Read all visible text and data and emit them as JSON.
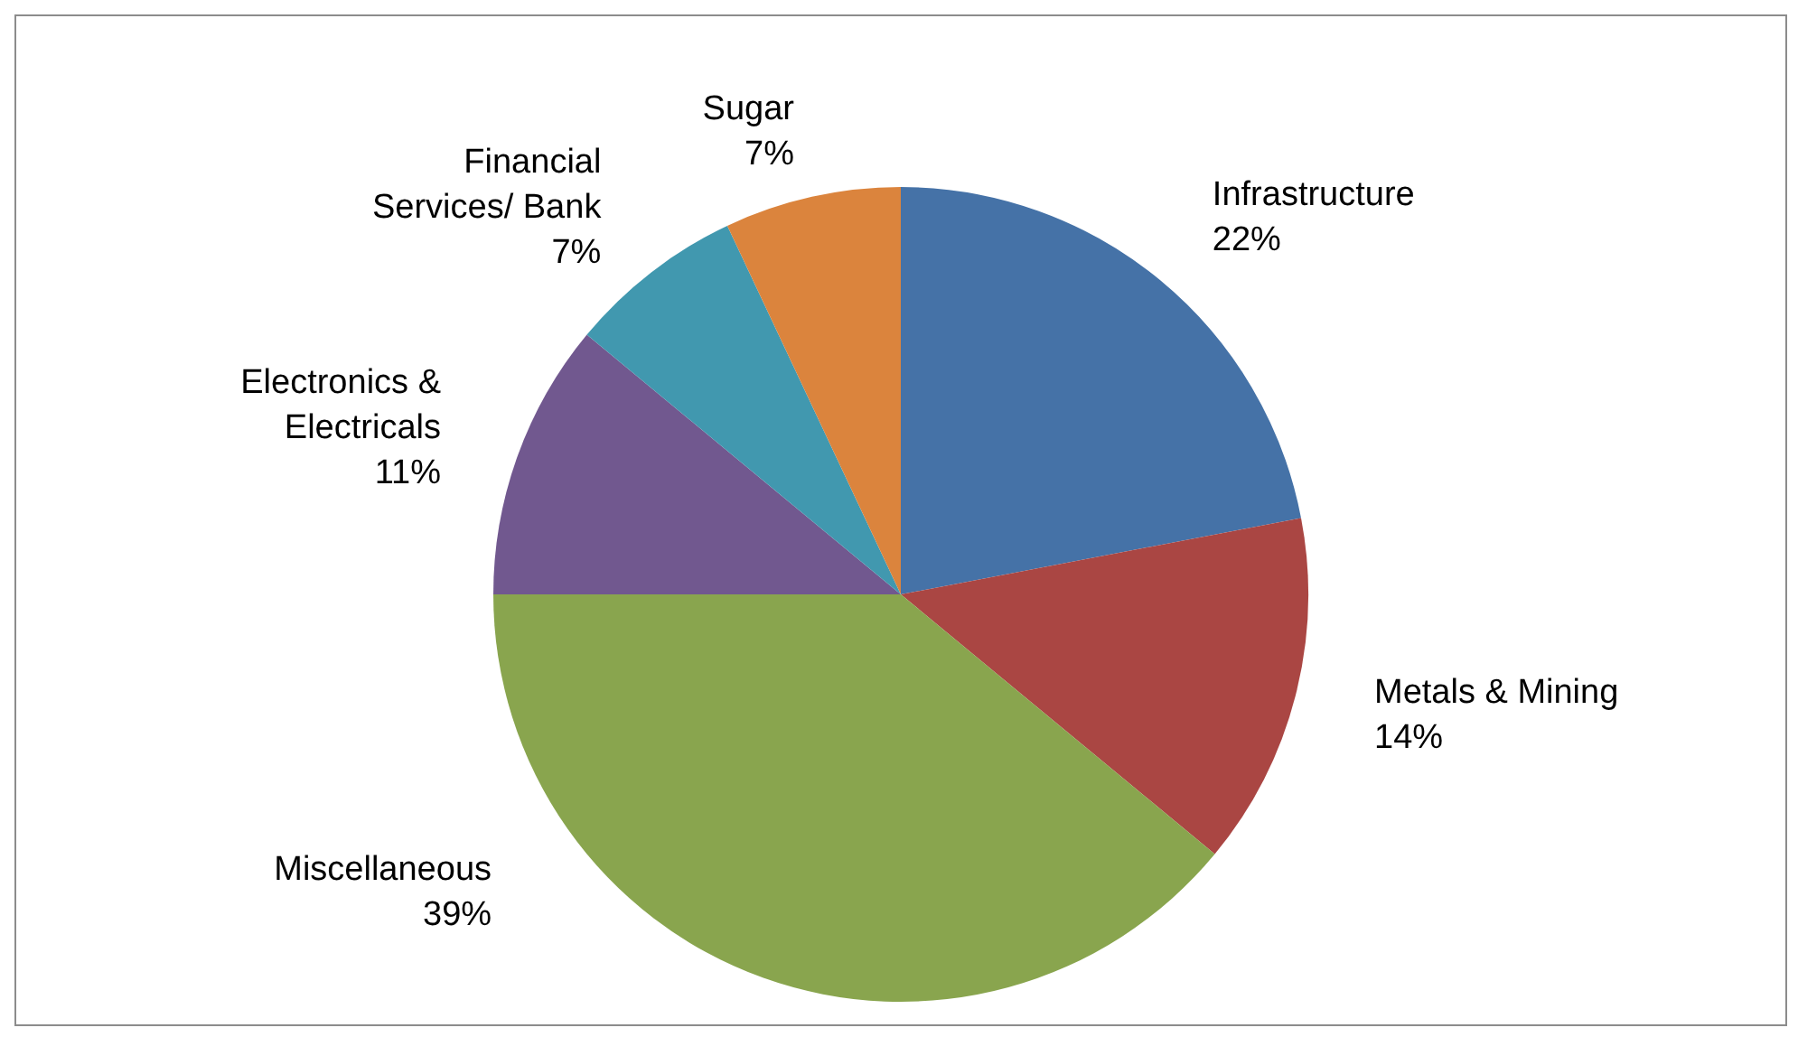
{
  "chart_data": {
    "type": "pie",
    "categories": [
      "Infrastructure",
      "Metals & Mining",
      "Miscellaneous",
      "Electronics & Electricals",
      "Financial Services/ Bank",
      "Sugar"
    ],
    "values": [
      22,
      14,
      39,
      11,
      7,
      7
    ],
    "value_labels": [
      "22%",
      "14%",
      "39%",
      "11%",
      "7%",
      "7%"
    ],
    "colors": [
      "#4572a7",
      "#aa4643",
      "#89a54e",
      "#71588f",
      "#4198af",
      "#db843d"
    ]
  }
}
